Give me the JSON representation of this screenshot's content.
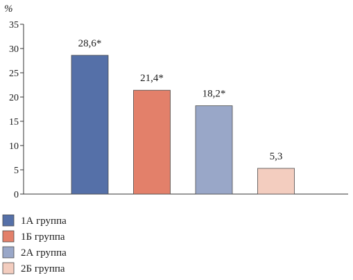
{
  "chart_data": {
    "type": "bar",
    "unit_label": "%",
    "categories": [
      "1А группа",
      "1Б группа",
      "2А группа",
      "2Б группа"
    ],
    "values": [
      28.6,
      21.4,
      18.2,
      5.3
    ],
    "value_labels": [
      "28,6*",
      "21,4*",
      "18,2*",
      "5,3"
    ],
    "colors": [
      "#5570a8",
      "#e3806a",
      "#99a7c8",
      "#f3cdbf"
    ],
    "ylim": [
      0,
      35
    ],
    "yticks": [
      0,
      5,
      10,
      15,
      20,
      25,
      30,
      35
    ],
    "grid": false,
    "legend_position": "bottom-left"
  }
}
